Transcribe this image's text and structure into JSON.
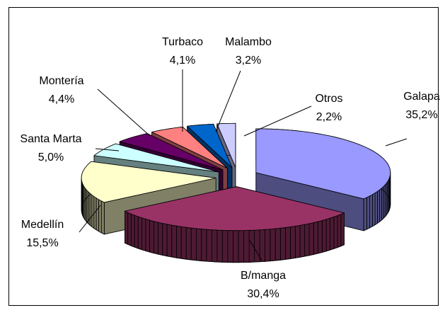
{
  "chart_data": {
    "type": "pie",
    "categories": [
      "Galapa",
      "B/manga",
      "Medellín",
      "Santa Marta",
      "Montería",
      "Turbaco",
      "Malambo",
      "Otros"
    ],
    "values": [
      35.2,
      30.4,
      15.5,
      5.0,
      4.4,
      4.1,
      3.2,
      2.2
    ],
    "value_labels": [
      "35,2%",
      "30,4%",
      "15,5%",
      "5,0%",
      "4,4%",
      "4,1%",
      "3,2%",
      "2,2%"
    ],
    "colors": [
      "#9999ff",
      "#993366",
      "#ffffcc",
      "#ccffff",
      "#660066",
      "#ff8080",
      "#0066cc",
      "#ccccff"
    ]
  }
}
